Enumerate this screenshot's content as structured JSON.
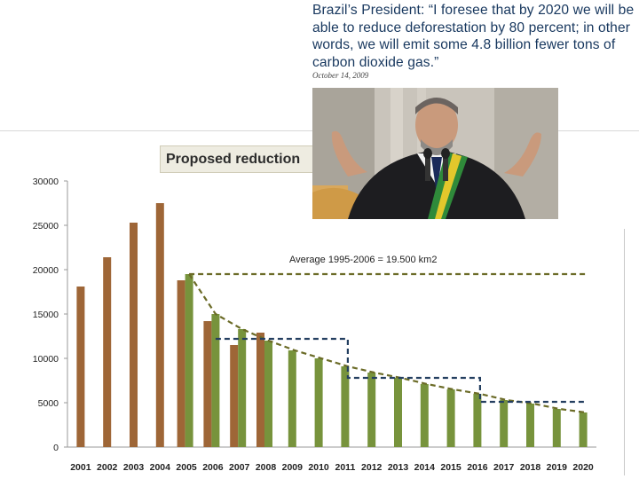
{
  "quote": {
    "text": "Brazil’s President: “I foresee that by 2020 we will be able to reduce deforestation by 80 percent; in other words, we will emit some 4.8 billion fewer tons of carbon dioxide gas.”",
    "date": "October 14, 2009"
  },
  "photo": {
    "subject": "speaker-photo"
  },
  "colors": {
    "brown": "#9e6637",
    "green": "#77933c",
    "olive_dash": "#6b6b27",
    "navy_dash": "#243f60",
    "quote_text": "#17375e"
  },
  "chart_data": {
    "type": "bar",
    "title": "Proposed reduction",
    "annotation": "Average 1995-2006 = 19.500 km2",
    "categories": [
      "2001",
      "2002",
      "2003",
      "2004",
      "2005",
      "2006",
      "2007",
      "2008",
      "2009",
      "2010",
      "2011",
      "2012",
      "2013",
      "2014",
      "2015",
      "2016",
      "2017",
      "2018",
      "2019",
      "2020"
    ],
    "ylim": [
      0,
      30000
    ],
    "yticks": [
      0,
      5000,
      10000,
      15000,
      20000,
      25000,
      30000
    ],
    "grid": false,
    "legend": "none",
    "series": [
      {
        "kind": "bar",
        "color": "#9e6637",
        "values": [
          18100,
          21400,
          25300,
          27500,
          18800,
          14200,
          11500,
          12900,
          null,
          null,
          null,
          null,
          null,
          null,
          null,
          null,
          null,
          null,
          null,
          null
        ]
      },
      {
        "kind": "bar",
        "color": "#77933c",
        "values": [
          null,
          null,
          null,
          null,
          19500,
          15000,
          13300,
          12000,
          10900,
          10000,
          9100,
          8400,
          7800,
          7100,
          6500,
          6000,
          5300,
          4900,
          4300,
          3900
        ]
      },
      {
        "kind": "line",
        "style": "dashed",
        "color": "#6b6b27",
        "values": [
          null,
          null,
          null,
          null,
          19500,
          19500,
          19500,
          19500,
          19500,
          19500,
          19500,
          19500,
          19500,
          19500,
          19500,
          19500,
          19500,
          19500,
          19500,
          19500
        ]
      },
      {
        "kind": "line",
        "style": "dashed",
        "color": "#6b6b27",
        "values": [
          null,
          null,
          null,
          null,
          19500,
          15000,
          13300,
          12000,
          10900,
          10000,
          9100,
          8400,
          7800,
          7100,
          6500,
          6000,
          5300,
          4900,
          4300,
          3900
        ]
      },
      {
        "kind": "line",
        "style": "dashed",
        "color": "#243f60",
        "values": [
          null,
          null,
          null,
          null,
          null,
          12200,
          12200,
          12200,
          12200,
          12200,
          7800,
          7800,
          7800,
          7800,
          7800,
          5100,
          5100,
          5100,
          5100,
          5100
        ]
      }
    ]
  }
}
